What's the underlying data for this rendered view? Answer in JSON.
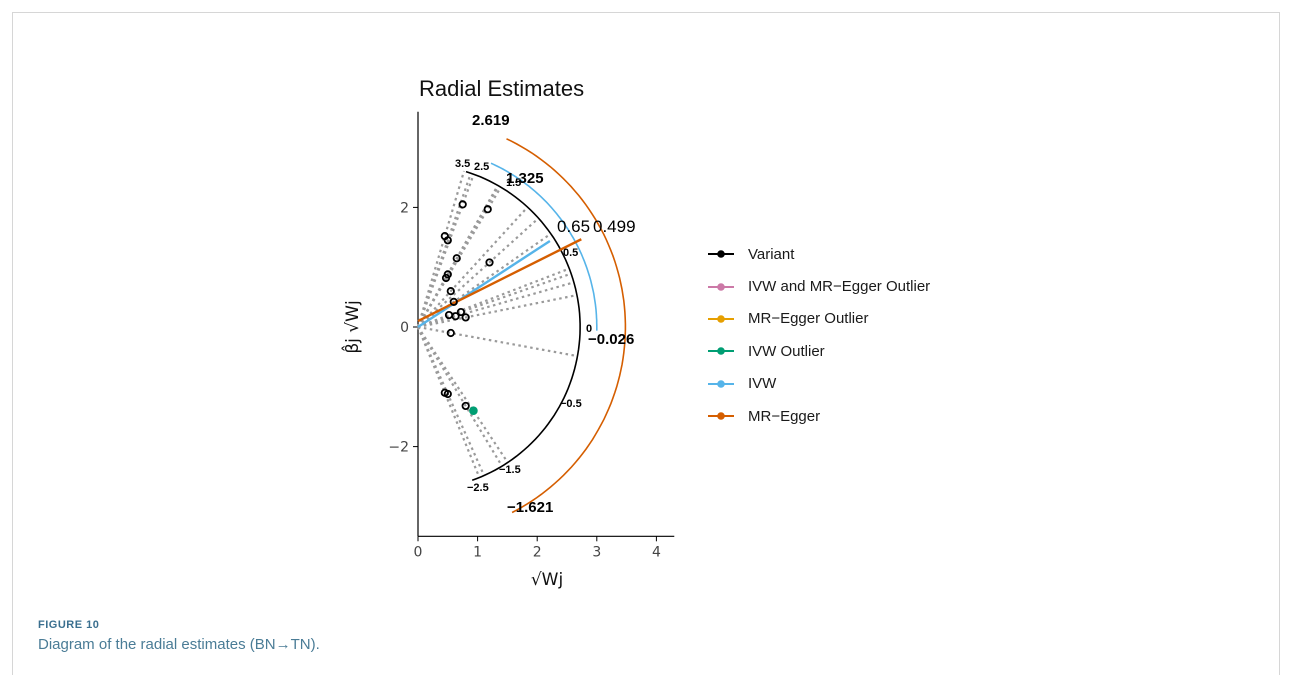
{
  "figure": {
    "label": "FIGURE 10",
    "caption": "Diagram of the radial estimates (BN→TN)."
  },
  "chart_data": {
    "type": "scatter",
    "title": "Radial Estimates",
    "xlabel": "√Wj",
    "ylabel": "β̂j √Wj",
    "xlim": [
      0,
      4.3
    ],
    "ylim": [
      -3.5,
      3.6
    ],
    "xticks": [
      "0",
      "1",
      "2",
      "3",
      "4"
    ],
    "yticks": [
      "-2",
      "0",
      "2"
    ],
    "grid": false,
    "legend_position": "right",
    "legend": [
      {
        "name": "Variant",
        "color": "#000000"
      },
      {
        "name": "IVW and MR−Egger Outlier",
        "color": "#cc79a7"
      },
      {
        "name": "MR−Egger Outlier",
        "color": "#e69f00"
      },
      {
        "name": "IVW Outlier",
        "color": "#009e73"
      },
      {
        "name": "IVW",
        "color": "#56b4e9"
      },
      {
        "name": "MR−Egger",
        "color": "#d55e00"
      }
    ],
    "points": [
      {
        "x": 0.75,
        "y": 2.05,
        "group": "Variant"
      },
      {
        "x": 1.17,
        "y": 1.97,
        "group": "Variant"
      },
      {
        "x": 0.45,
        "y": 1.52,
        "group": "Variant"
      },
      {
        "x": 0.5,
        "y": 1.45,
        "group": "Variant"
      },
      {
        "x": 0.65,
        "y": 1.15,
        "group": "Variant"
      },
      {
        "x": 1.2,
        "y": 1.08,
        "group": "Variant"
      },
      {
        "x": 0.5,
        "y": 0.88,
        "group": "Variant"
      },
      {
        "x": 0.47,
        "y": 0.82,
        "group": "Variant"
      },
      {
        "x": 0.55,
        "y": 0.6,
        "group": "Variant"
      },
      {
        "x": 0.6,
        "y": 0.42,
        "group": "Variant"
      },
      {
        "x": 0.72,
        "y": 0.25,
        "group": "Variant"
      },
      {
        "x": 0.52,
        "y": 0.2,
        "group": "Variant"
      },
      {
        "x": 0.63,
        "y": 0.18,
        "group": "Variant"
      },
      {
        "x": 0.8,
        "y": 0.16,
        "group": "Variant"
      },
      {
        "x": 0.55,
        "y": -0.1,
        "group": "Variant"
      },
      {
        "x": 0.45,
        "y": -1.1,
        "group": "Variant"
      },
      {
        "x": 0.5,
        "y": -1.12,
        "group": "Variant"
      },
      {
        "x": 0.8,
        "y": -1.32,
        "group": "Variant"
      },
      {
        "x": 0.93,
        "y": -1.4,
        "group": "IVW Outlier"
      }
    ],
    "variant_scale": {
      "radius": 2.72,
      "labels": [
        "3.5",
        "2.5",
        "1.5",
        "0.5",
        "0",
        "-0.5",
        "-1.5",
        "-2.5"
      ]
    },
    "ivw": {
      "estimate": 0.65,
      "label": "0.65",
      "radius": 3.0,
      "upper_label": "1.325",
      "lower_label": "-0.026"
    },
    "mr_egger": {
      "estimate": 0.499,
      "label": "0.499",
      "intercept": 0.1,
      "radius": 3.48,
      "upper_label": "2.619",
      "lower_label": "-1.621"
    }
  }
}
